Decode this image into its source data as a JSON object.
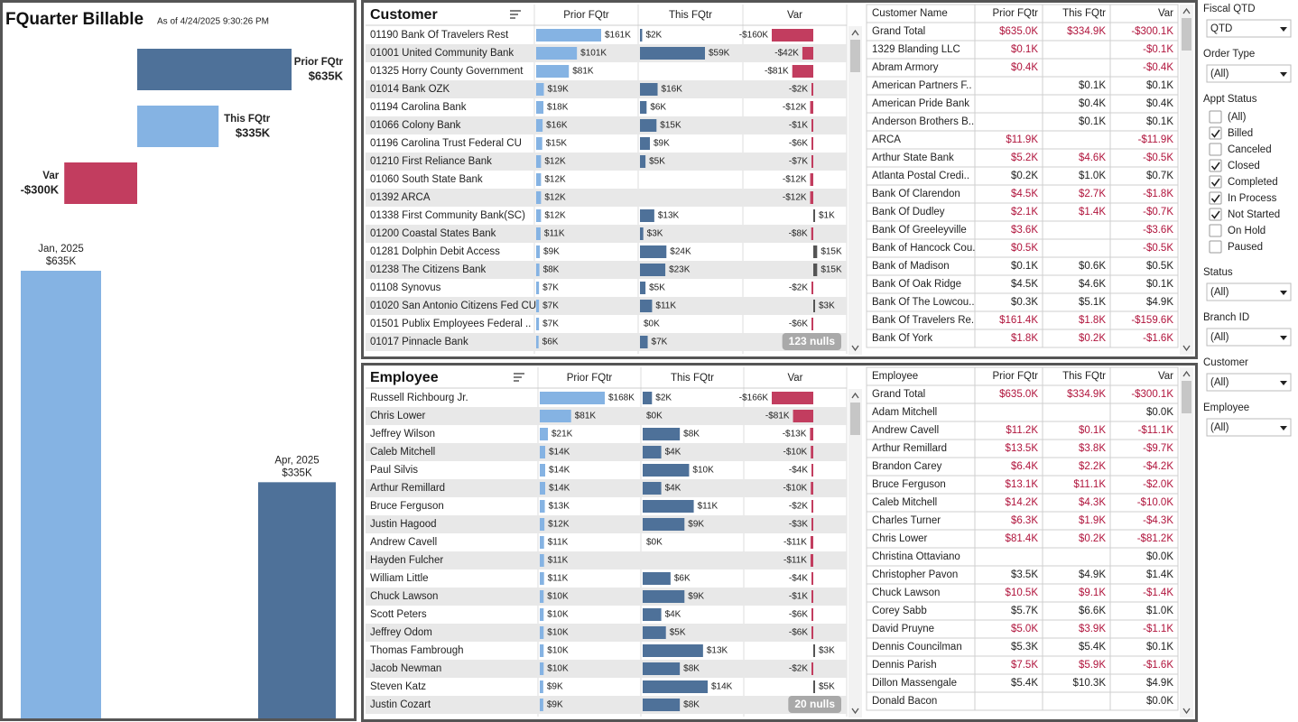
{
  "header": {
    "title": "FQuarter Billable",
    "as_of": "As of 4/24/2025 9:30:26 PM"
  },
  "waterfall": {
    "items": [
      {
        "name": "Prior FQtr",
        "value": 635,
        "value_label": "$635K",
        "color": "#4e7199"
      },
      {
        "name": "This FQtr",
        "value": 335,
        "value_label": "$335K",
        "color": "#85b3e3"
      },
      {
        "name": "Var",
        "value": -300,
        "value_label": "-$300K",
        "color": "#c23d5f"
      }
    ]
  },
  "monthly": {
    "categories": [
      "Jan, 2025",
      "Apr, 2025"
    ],
    "values": [
      635,
      335
    ],
    "value_labels": [
      "$635K",
      "$335K"
    ],
    "colors": [
      "#85b3e3",
      "#4e7199"
    ]
  },
  "customer_bars": {
    "title": "Customer",
    "columns": [
      "Prior FQtr",
      "This FQtr",
      "Var"
    ],
    "prior_color": "#85b3e3",
    "this_color": "#4e7199",
    "neg_color": "#c23d5f",
    "pos_color": "#555555",
    "names": [
      "01190 Bank Of Travelers Rest",
      "01001 United Community Bank",
      "01325 Horry County Government",
      "01014 Bank OZK",
      "01194 Carolina Bank",
      "01066 Colony Bank",
      "01196 Carolina Trust Federal CU",
      "01210 First Reliance Bank",
      "01060 South State Bank",
      "01392 ARCA",
      "01338 First Community Bank(SC)",
      "01200 Coastal States Bank",
      "01281 Dolphin Debit Access",
      "01238 The Citizens Bank",
      "01108 Synovus",
      "01020 San Antonio Citizens Fed CU",
      "01501 Publix Employees Federal ..",
      "01017 Pinnacle Bank"
    ],
    "prior": [
      161,
      101,
      81,
      19,
      18,
      16,
      15,
      12,
      12,
      12,
      12,
      11,
      9,
      8,
      7,
      7,
      7,
      6
    ],
    "prior_labels": [
      "$161K",
      "$101K",
      "$81K",
      "$19K",
      "$18K",
      "$16K",
      "$15K",
      "$12K",
      "$12K",
      "$12K",
      "$12K",
      "$11K",
      "$9K",
      "$8K",
      "$7K",
      "$7K",
      "$7K",
      "$6K"
    ],
    "this": [
      2,
      59,
      null,
      16,
      6,
      15,
      9,
      5,
      null,
      null,
      13,
      3,
      24,
      23,
      5,
      11,
      0,
      7
    ],
    "this_labels": [
      "$2K",
      "$59K",
      null,
      "$16K",
      "$6K",
      "$15K",
      "$9K",
      "$5K",
      null,
      null,
      "$13K",
      "$3K",
      "$24K",
      "$23K",
      "$5K",
      "$11K",
      "$0K",
      "$7K"
    ],
    "var": [
      -160,
      -42,
      -81,
      -2,
      -12,
      -1,
      -6,
      -7,
      -12,
      -12,
      1,
      -8,
      15,
      15,
      -2,
      3,
      -6,
      null
    ],
    "var_labels": [
      "-$160K",
      "-$42K",
      "-$81K",
      "-$2K",
      "-$12K",
      "-$1K",
      "-$6K",
      "-$7K",
      "-$12K",
      "-$12K",
      "$1K",
      "-$8K",
      "$15K",
      "$15K",
      "-$2K",
      "$3K",
      "-$6K",
      null
    ],
    "nulls": "123 nulls"
  },
  "employee_bars": {
    "title": "Employee",
    "columns": [
      "Prior FQtr",
      "This FQtr",
      "Var"
    ],
    "prior_color": "#85b3e3",
    "this_color": "#4e7199",
    "neg_color": "#c23d5f",
    "pos_color": "#555555",
    "names": [
      "Russell Richbourg Jr.",
      "Chris Lower",
      "Jeffrey Wilson",
      "Caleb Mitchell",
      "Paul Silvis",
      "Arthur Remillard",
      "Bruce Ferguson",
      "Justin Hagood",
      "Andrew Cavell",
      "Hayden Fulcher",
      "William Little",
      "Chuck Lawson",
      "Scott Peters",
      "Jeffrey Odom",
      "Thomas Fambrough",
      "Jacob Newman",
      "Steven Katz",
      "Justin Cozart"
    ],
    "prior": [
      168,
      81,
      21,
      14,
      14,
      14,
      13,
      12,
      11,
      11,
      11,
      10,
      10,
      10,
      10,
      10,
      9,
      9
    ],
    "prior_labels": [
      "$168K",
      "$81K",
      "$21K",
      "$14K",
      "$14K",
      "$14K",
      "$13K",
      "$12K",
      "$11K",
      "$11K",
      "$11K",
      "$10K",
      "$10K",
      "$10K",
      "$10K",
      "$10K",
      "$9K",
      "$9K"
    ],
    "this": [
      2,
      0,
      8,
      4,
      10,
      4,
      11,
      9,
      0,
      null,
      6,
      9,
      4,
      5,
      13,
      8,
      14,
      8
    ],
    "this_labels": [
      "$2K",
      "$0K",
      "$8K",
      "$4K",
      "$10K",
      "$4K",
      "$11K",
      "$9K",
      "$0K",
      null,
      "$6K",
      "$9K",
      "$4K",
      "$5K",
      "$13K",
      "$8K",
      "$14K",
      "$8K"
    ],
    "var": [
      -166,
      -81,
      -13,
      -10,
      -4,
      -10,
      -2,
      -3,
      -11,
      -11,
      -4,
      -1,
      -6,
      -6,
      3,
      -2,
      5,
      null
    ],
    "var_labels": [
      "-$166K",
      "-$81K",
      "-$13K",
      "-$10K",
      "-$4K",
      "-$10K",
      "-$2K",
      "-$3K",
      "-$11K",
      "-$11K",
      "-$4K",
      "-$1K",
      "-$6K",
      "-$6K",
      "$3K",
      "-$2K",
      "$5K",
      null
    ],
    "nulls": "20 nulls"
  },
  "customer_table": {
    "columns": [
      "Customer Name",
      "Prior FQtr",
      "This FQtr",
      "Var"
    ],
    "rows": [
      [
        "Grand Total",
        "$635.0K",
        "$334.9K",
        "-$300.1K"
      ],
      [
        "1329 Blanding LLC",
        "$0.1K",
        null,
        "-$0.1K"
      ],
      [
        "Abram Armory",
        "$0.4K",
        null,
        "-$0.4K"
      ],
      [
        "American Partners F..",
        null,
        "$0.1K",
        "$0.1K"
      ],
      [
        "American Pride Bank",
        null,
        "$0.4K",
        "$0.4K"
      ],
      [
        "Anderson Brothers B..",
        null,
        "$0.1K",
        "$0.1K"
      ],
      [
        "ARCA",
        "$11.9K",
        null,
        "-$11.9K"
      ],
      [
        "Arthur State Bank",
        "$5.2K",
        "$4.6K",
        "-$0.5K"
      ],
      [
        "Atlanta Postal Credi..",
        "$0.2K",
        "$1.0K",
        "$0.7K"
      ],
      [
        "Bank Of Clarendon",
        "$4.5K",
        "$2.7K",
        "-$1.8K"
      ],
      [
        "Bank Of Dudley",
        "$2.1K",
        "$1.4K",
        "-$0.7K"
      ],
      [
        "Bank Of Greeleyville",
        "$3.6K",
        null,
        "-$3.6K"
      ],
      [
        "Bank of Hancock Cou..",
        "$0.5K",
        null,
        "-$0.5K"
      ],
      [
        "Bank of Madison",
        "$0.1K",
        "$0.6K",
        "$0.5K"
      ],
      [
        "Bank Of Oak Ridge",
        "$4.5K",
        "$4.6K",
        "$0.1K"
      ],
      [
        "Bank Of The Lowcou..",
        "$0.3K",
        "$5.1K",
        "$4.9K"
      ],
      [
        "Bank Of Travelers Re..",
        "$161.4K",
        "$1.8K",
        "-$159.6K"
      ],
      [
        "Bank Of York",
        "$1.8K",
        "$0.2K",
        "-$1.6K"
      ]
    ]
  },
  "employee_table": {
    "columns": [
      "Employee",
      "Prior FQtr",
      "This FQtr",
      "Var"
    ],
    "rows": [
      [
        "Grand Total",
        "$635.0K",
        "$334.9K",
        "-$300.1K"
      ],
      [
        "Adam Mitchell",
        null,
        null,
        "$0.0K"
      ],
      [
        "Andrew Cavell",
        "$11.2K",
        "$0.1K",
        "-$11.1K"
      ],
      [
        "Arthur Remillard",
        "$13.5K",
        "$3.8K",
        "-$9.7K"
      ],
      [
        "Brandon Carey",
        "$6.4K",
        "$2.2K",
        "-$4.2K"
      ],
      [
        "Bruce Ferguson",
        "$13.1K",
        "$11.1K",
        "-$2.0K"
      ],
      [
        "Caleb Mitchell",
        "$14.2K",
        "$4.3K",
        "-$10.0K"
      ],
      [
        "Charles Turner",
        "$6.3K",
        "$1.9K",
        "-$4.3K"
      ],
      [
        "Chris Lower",
        "$81.4K",
        "$0.2K",
        "-$81.2K"
      ],
      [
        "Christina Ottaviano",
        null,
        null,
        "$0.0K"
      ],
      [
        "Christopher Pavon",
        "$3.5K",
        "$4.9K",
        "$1.4K"
      ],
      [
        "Chuck Lawson",
        "$10.5K",
        "$9.1K",
        "-$1.4K"
      ],
      [
        "Corey Sabb",
        "$5.7K",
        "$6.6K",
        "$1.0K"
      ],
      [
        "David Pruyne",
        "$5.0K",
        "$3.9K",
        "-$1.1K"
      ],
      [
        "Dennis Councilman",
        "$5.3K",
        "$5.4K",
        "$0.1K"
      ],
      [
        "Dennis Parish",
        "$7.5K",
        "$5.9K",
        "-$1.6K"
      ],
      [
        "Dillon Massengale",
        "$5.4K",
        "$10.3K",
        "$4.9K"
      ],
      [
        "Donald Bacon",
        null,
        null,
        "$0.0K"
      ]
    ]
  },
  "filters": [
    {
      "label": "Fiscal QTD",
      "value": "QTD"
    },
    {
      "label": "Order Type",
      "value": "(All)"
    },
    {
      "label": "Appt Status",
      "options": [
        {
          "label": "(All)",
          "checked": false
        },
        {
          "label": "Billed",
          "checked": true
        },
        {
          "label": "Canceled",
          "checked": false
        },
        {
          "label": "Closed",
          "checked": true
        },
        {
          "label": "Completed",
          "checked": true
        },
        {
          "label": "In Process",
          "checked": true
        },
        {
          "label": "Not Started",
          "checked": true
        },
        {
          "label": "On Hold",
          "checked": false
        },
        {
          "label": "Paused",
          "checked": false
        }
      ]
    },
    {
      "label": "Status",
      "value": "(All)"
    },
    {
      "label": "Branch ID",
      "value": "(All)"
    },
    {
      "label": "Customer",
      "value": "(All)"
    },
    {
      "label": "Employee",
      "value": "(All)"
    }
  ]
}
